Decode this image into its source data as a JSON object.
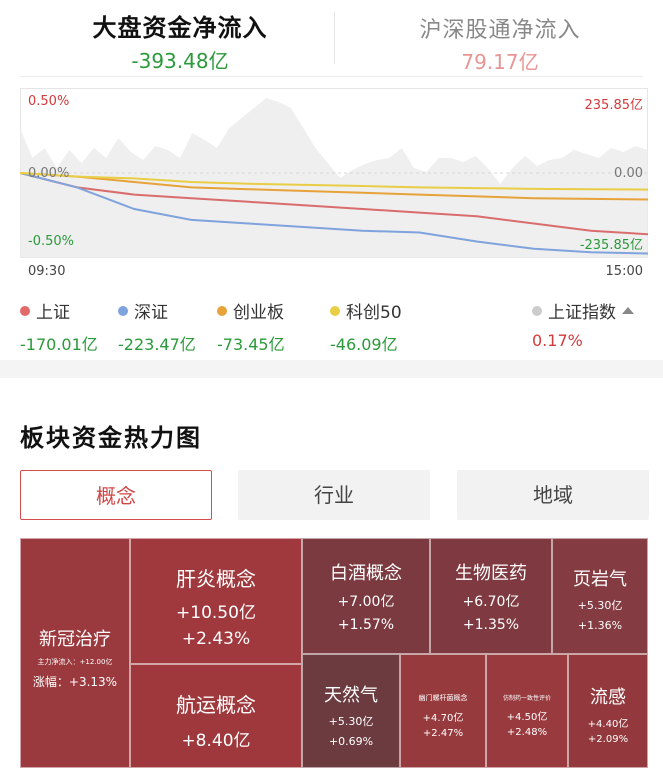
{
  "tabs": {
    "main": {
      "title": "大盘资金净流入",
      "value": "-393.48亿"
    },
    "side": {
      "title": "沪深股通净流入",
      "value": "79.17亿"
    }
  },
  "chart_data": {
    "type": "line",
    "x_start": "09:30",
    "x_end": "15:00",
    "left_axis": {
      "top": "0.50%",
      "mid": "0.00%",
      "bottom": "-0.50%"
    },
    "right_axis": {
      "top": "235.85亿",
      "mid": "0.00",
      "bottom": "-235.85亿"
    },
    "ylim": [
      -235.85,
      235.85
    ],
    "series": [
      {
        "name": "上证",
        "color": "#d96c6c",
        "values": [
          0,
          -40,
          -60,
          -70,
          -80,
          -90,
          -100,
          -110,
          -120,
          -140,
          -160,
          -170.01
        ]
      },
      {
        "name": "深证",
        "color": "#7fa3dc",
        "values": [
          0,
          -40,
          -100,
          -130,
          -140,
          -150,
          -160,
          -165,
          -190,
          -210,
          -220,
          -223.47
        ]
      },
      {
        "name": "创业板",
        "color": "#e8a23a",
        "values": [
          0,
          -10,
          -25,
          -40,
          -45,
          -50,
          -55,
          -60,
          -65,
          -70,
          -72,
          -73.45
        ]
      },
      {
        "name": "科创50",
        "color": "#e9cd45",
        "values": [
          0,
          -10,
          -15,
          -25,
          -30,
          -33,
          -36,
          -40,
          -42,
          -44,
          -45,
          -46.09
        ]
      }
    ],
    "area_color": "#e9e9e9"
  },
  "legend": [
    {
      "name": "上证",
      "value": "-170.01亿",
      "color": "#e26a6a"
    },
    {
      "name": "深证",
      "value": "-223.47亿",
      "color": "#7fa3dc"
    },
    {
      "name": "创业板",
      "value": "-73.45亿",
      "color": "#e8a23a"
    },
    {
      "name": "科创50",
      "value": "-46.09亿",
      "color": "#e9cd45"
    },
    {
      "name": "上证指数",
      "value": "0.17%",
      "color": "#cccccc"
    }
  ],
  "heatmap": {
    "title": "板块资金热力图",
    "segments": [
      "概念",
      "行业",
      "地域"
    ],
    "active_segment": "概念",
    "tiles": [
      {
        "name": "新冠治疗",
        "sub": "主力净流入：+12.00亿",
        "pct": "涨幅：+3.13%",
        "color": "#9b3a3e"
      },
      {
        "name": "肝炎概念",
        "flow": "+10.50亿",
        "pct": "+2.43%",
        "color": "#a0393d"
      },
      {
        "name": "航运概念",
        "flow": "+8.40亿",
        "color": "#9e383c"
      },
      {
        "name": "白酒概念",
        "flow": "+7.00亿",
        "pct": "+1.57%",
        "color": "#7b3a40"
      },
      {
        "name": "生物医药",
        "flow": "+6.70亿",
        "pct": "+1.35%",
        "color": "#7e3a40"
      },
      {
        "name": "页岩气",
        "flow": "+5.30亿",
        "pct": "+1.36%",
        "color": "#843b41"
      },
      {
        "name": "天然气",
        "flow": "+5.30亿",
        "pct": "+0.69%",
        "color": "#6b3b40"
      },
      {
        "name": "幽门螺杆菌概念",
        "flow": "+4.70亿",
        "pct": "+2.47%",
        "color": "#963a3e"
      },
      {
        "name": "仿制药一致性评价",
        "flow": "+4.50亿",
        "pct": "+2.48%",
        "color": "#983a3e"
      },
      {
        "name": "流感",
        "flow": "+4.40亿",
        "pct": "+2.09%",
        "color": "#93393d"
      }
    ]
  }
}
